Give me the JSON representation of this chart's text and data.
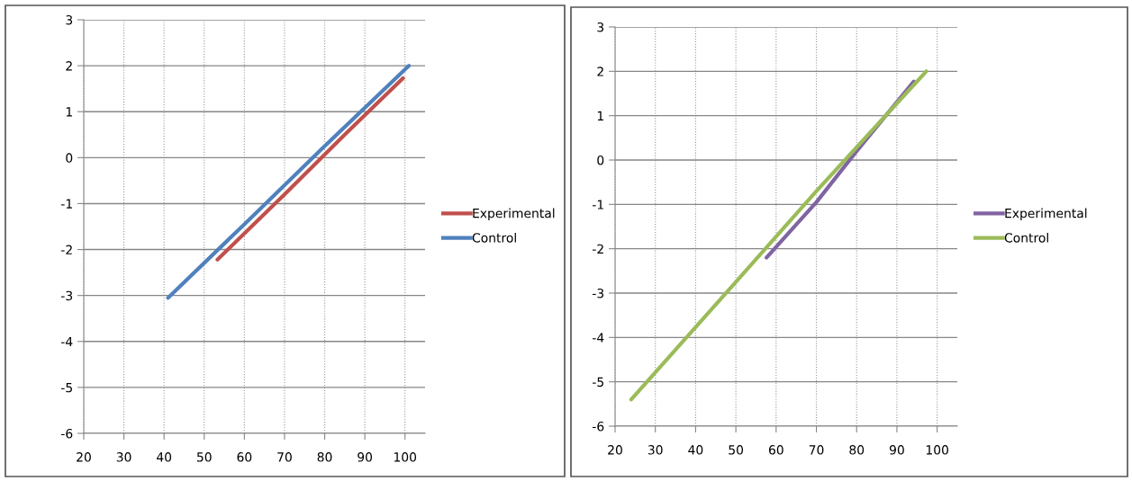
{
  "chart_data": [
    {
      "type": "line",
      "xlim": [
        20,
        105
      ],
      "xticks": [
        20,
        30,
        40,
        50,
        60,
        70,
        80,
        90,
        100
      ],
      "ylim": [
        -6,
        3
      ],
      "yticks": [
        -6,
        -5,
        -4,
        -3,
        -2,
        -1,
        0,
        1,
        2,
        3
      ],
      "grid": true,
      "legend": "right",
      "marker": "none",
      "line_style": "solid",
      "series": [
        {
          "name": "Experimental",
          "color": "#c0504d",
          "x": [
            53.3,
            70,
            85,
            99.5
          ],
          "values": [
            -2.22,
            -0.8,
            0.5,
            1.73
          ]
        },
        {
          "name": "Control",
          "color": "#4f81bd",
          "x": [
            41,
            60,
            80,
            101
          ],
          "values": [
            -3.05,
            -1.45,
            0.25,
            2.0
          ]
        }
      ]
    },
    {
      "type": "line",
      "xlim": [
        20,
        105
      ],
      "xticks": [
        20,
        30,
        40,
        50,
        60,
        70,
        80,
        90,
        100
      ],
      "ylim": [
        -6,
        3
      ],
      "yticks": [
        -6,
        -5,
        -4,
        -3,
        -2,
        -1,
        0,
        1,
        2,
        3
      ],
      "grid": true,
      "legend": "right",
      "marker": "none",
      "line_style": "solid",
      "series": [
        {
          "name": "Experimental",
          "color": "#8064a2",
          "x": [
            57.6,
            70,
            80,
            94.2
          ],
          "values": [
            -2.2,
            -0.95,
            0.2,
            1.77
          ]
        },
        {
          "name": "Control",
          "color": "#9bbb59",
          "x": [
            24,
            50,
            70,
            97.3
          ],
          "values": [
            -5.4,
            -2.75,
            -0.7,
            2.0
          ]
        }
      ]
    }
  ]
}
